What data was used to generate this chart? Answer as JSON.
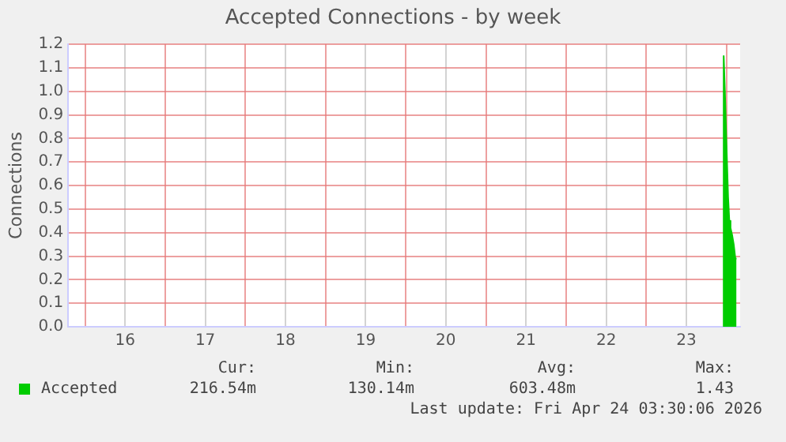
{
  "chart_data": {
    "type": "area",
    "title": "Accepted Connections - by week",
    "ylabel": "Connections",
    "series": [
      {
        "name": "Accepted",
        "color": "#00cc00",
        "x": [
          23.96,
          23.965,
          23.98,
          24.0,
          24.02,
          24.035,
          24.05,
          24.07,
          24.09,
          24.11,
          24.125
        ],
        "values": [
          0,
          1.15,
          1.0,
          0.77,
          0.55,
          0.45,
          0.42,
          0.39,
          0.35,
          0.29,
          0.29
        ]
      }
    ],
    "xlim": [
      15.79,
      24.17
    ],
    "xticks": [
      {
        "value": 16,
        "label": null
      },
      {
        "value": 16.5,
        "label": "16"
      },
      {
        "value": 17,
        "label": null
      },
      {
        "value": 17.5,
        "label": "17"
      },
      {
        "value": 18,
        "label": null
      },
      {
        "value": 18.5,
        "label": "18"
      },
      {
        "value": 19,
        "label": null
      },
      {
        "value": 19.5,
        "label": "19"
      },
      {
        "value": 20,
        "label": null
      },
      {
        "value": 20.5,
        "label": "20"
      },
      {
        "value": 21,
        "label": null
      },
      {
        "value": 21.5,
        "label": "21"
      },
      {
        "value": 22,
        "label": null
      },
      {
        "value": 22.5,
        "label": "22"
      },
      {
        "value": 23,
        "label": null
      },
      {
        "value": 23.5,
        "label": "23"
      },
      {
        "value": 24,
        "label": null
      }
    ],
    "ylim": [
      0,
      1.2
    ],
    "yticks": [
      {
        "value": 0,
        "label": "0.0"
      },
      {
        "value": 0.1,
        "label": "0.1"
      },
      {
        "value": 0.2,
        "label": "0.2"
      },
      {
        "value": 0.3,
        "label": "0.3"
      },
      {
        "value": 0.4,
        "label": "0.4"
      },
      {
        "value": 0.5,
        "label": "0.5"
      },
      {
        "value": 0.6,
        "label": "0.6"
      },
      {
        "value": 0.7,
        "label": "0.7"
      },
      {
        "value": 0.8,
        "label": "0.8"
      },
      {
        "value": 0.9,
        "label": "0.9"
      },
      {
        "value": 1.0,
        "label": "1.0"
      },
      {
        "value": 1.1,
        "label": "1.1"
      },
      {
        "value": 1.2,
        "label": "1.2"
      }
    ],
    "grid": true,
    "legend": "bottom left",
    "marker": "none",
    "annotations": [
      "Cur:",
      "Min:",
      "Avg:",
      "Max:",
      "216.54m",
      "130.14m",
      "603.48m",
      "1.43",
      "Last update: Fri Apr 24 03:30:06 2026"
    ]
  }
}
